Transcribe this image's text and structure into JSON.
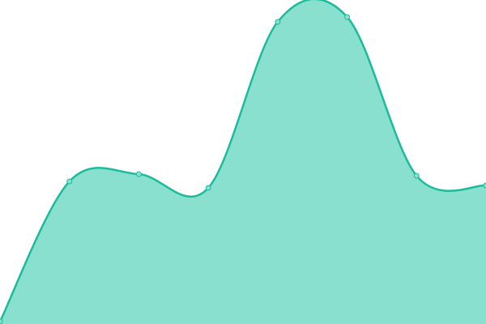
{
  "chart_data": {
    "type": "area",
    "x": [
      0,
      1,
      2,
      3,
      4,
      5,
      6,
      7
    ],
    "series": [
      {
        "values": [
          3,
          176,
          185,
          168,
          373,
          379,
          183,
          171
        ]
      }
    ],
    "ylim": [
      0,
      400
    ],
    "grid": false,
    "axes_visible": false,
    "smooth": true,
    "markers": true,
    "colors": {
      "line": "#1abc9c",
      "fill": "#8ae0cf",
      "marker_fill": "#8ae0cf"
    }
  }
}
